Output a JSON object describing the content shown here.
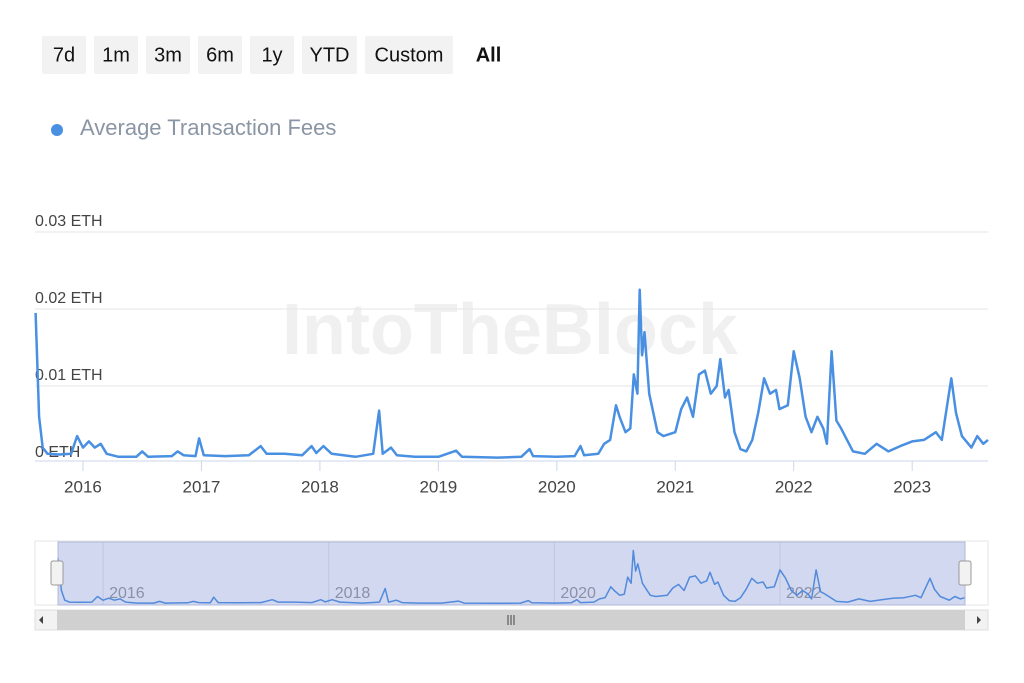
{
  "range_buttons": [
    "7d",
    "1m",
    "3m",
    "6m",
    "1y",
    "YTD",
    "Custom",
    "All"
  ],
  "selected_range": "All",
  "watermark": "IntoTheBlock",
  "chart_data": {
    "type": "line",
    "x": [
      2015.6,
      2015.63,
      2015.66,
      2015.7,
      2015.8,
      2015.9,
      2015.95,
      2016.0,
      2016.05,
      2016.1,
      2016.15,
      2016.2,
      2016.3,
      2016.45,
      2016.5,
      2016.55,
      2016.75,
      2016.8,
      2016.85,
      2016.95,
      2016.98,
      2017.02,
      2017.2,
      2017.4,
      2017.5,
      2017.55,
      2017.7,
      2017.85,
      2017.93,
      2017.97,
      2018.03,
      2018.1,
      2018.3,
      2018.45,
      2018.5,
      2018.53,
      2018.6,
      2018.65,
      2018.8,
      2019.0,
      2019.15,
      2019.2,
      2019.5,
      2019.7,
      2019.77,
      2019.8,
      2020.0,
      2020.15,
      2020.2,
      2020.23,
      2020.35,
      2020.4,
      2020.45,
      2020.5,
      2020.53,
      2020.58,
      2020.62,
      2020.65,
      2020.68,
      2020.7,
      2020.72,
      2020.74,
      2020.78,
      2020.85,
      2020.9,
      2021.0,
      2021.05,
      2021.1,
      2021.15,
      2021.2,
      2021.25,
      2021.3,
      2021.35,
      2021.38,
      2021.42,
      2021.45,
      2021.5,
      2021.55,
      2021.6,
      2021.65,
      2021.7,
      2021.75,
      2021.8,
      2021.85,
      2021.88,
      2021.95,
      2022.0,
      2022.05,
      2022.1,
      2022.15,
      2022.2,
      2022.25,
      2022.28,
      2022.32,
      2022.36,
      2022.4,
      2022.45,
      2022.5,
      2022.6,
      2022.7,
      2022.8,
      2022.9,
      2023.0,
      2023.1,
      2023.2,
      2023.25,
      2023.33,
      2023.37,
      2023.42,
      2023.5,
      2023.55,
      2023.6,
      2023.64
    ],
    "series": [
      {
        "name": "Average Transaction Fees",
        "color": "#4a90e2",
        "values": [
          0.0195,
          0.006,
          0.002,
          0.0012,
          0.0011,
          0.0012,
          0.0035,
          0.002,
          0.0028,
          0.002,
          0.0025,
          0.0012,
          0.0008,
          0.0008,
          0.0015,
          0.0008,
          0.0009,
          0.0015,
          0.001,
          0.0009,
          0.0032,
          0.001,
          0.0009,
          0.001,
          0.0022,
          0.0012,
          0.0012,
          0.001,
          0.0022,
          0.0013,
          0.0022,
          0.0012,
          0.0008,
          0.0012,
          0.0068,
          0.0012,
          0.002,
          0.001,
          0.0008,
          0.0008,
          0.0016,
          0.0008,
          0.0007,
          0.0008,
          0.0018,
          0.0009,
          0.0008,
          0.0009,
          0.0022,
          0.001,
          0.0012,
          0.0025,
          0.003,
          0.0075,
          0.006,
          0.004,
          0.0045,
          0.0115,
          0.009,
          0.0225,
          0.014,
          0.017,
          0.009,
          0.004,
          0.0035,
          0.004,
          0.007,
          0.0085,
          0.006,
          0.0115,
          0.012,
          0.009,
          0.01,
          0.0135,
          0.0085,
          0.0095,
          0.004,
          0.0018,
          0.0015,
          0.003,
          0.0065,
          0.011,
          0.009,
          0.0095,
          0.007,
          0.0075,
          0.0145,
          0.011,
          0.006,
          0.004,
          0.006,
          0.0045,
          0.0025,
          0.0145,
          0.0055,
          0.0045,
          0.003,
          0.0015,
          0.0012,
          0.0025,
          0.0015,
          0.0022,
          0.0028,
          0.003,
          0.004,
          0.003,
          0.011,
          0.0065,
          0.0035,
          0.002,
          0.0035,
          0.0025,
          0.003
        ]
      }
    ],
    "xlim": [
      2015.595,
      2023.64
    ],
    "xticks": [
      2016,
      2017,
      2018,
      2019,
      2020,
      2021,
      2022,
      2023
    ],
    "ylim": [
      0,
      0.03
    ],
    "yticks": [
      {
        "value": 0,
        "label": "0 ETH"
      },
      {
        "value": 0.01,
        "label": "0.01 ETH"
      },
      {
        "value": 0.02,
        "label": "0.02 ETH"
      },
      {
        "value": 0.03,
        "label": "0.03 ETH"
      }
    ],
    "grid": true,
    "navigator": {
      "xlim": [
        2015.6,
        2023.64
      ],
      "ylim": [
        0,
        0.026
      ],
      "xticks": [
        2016,
        2018,
        2020,
        2022
      ]
    }
  }
}
